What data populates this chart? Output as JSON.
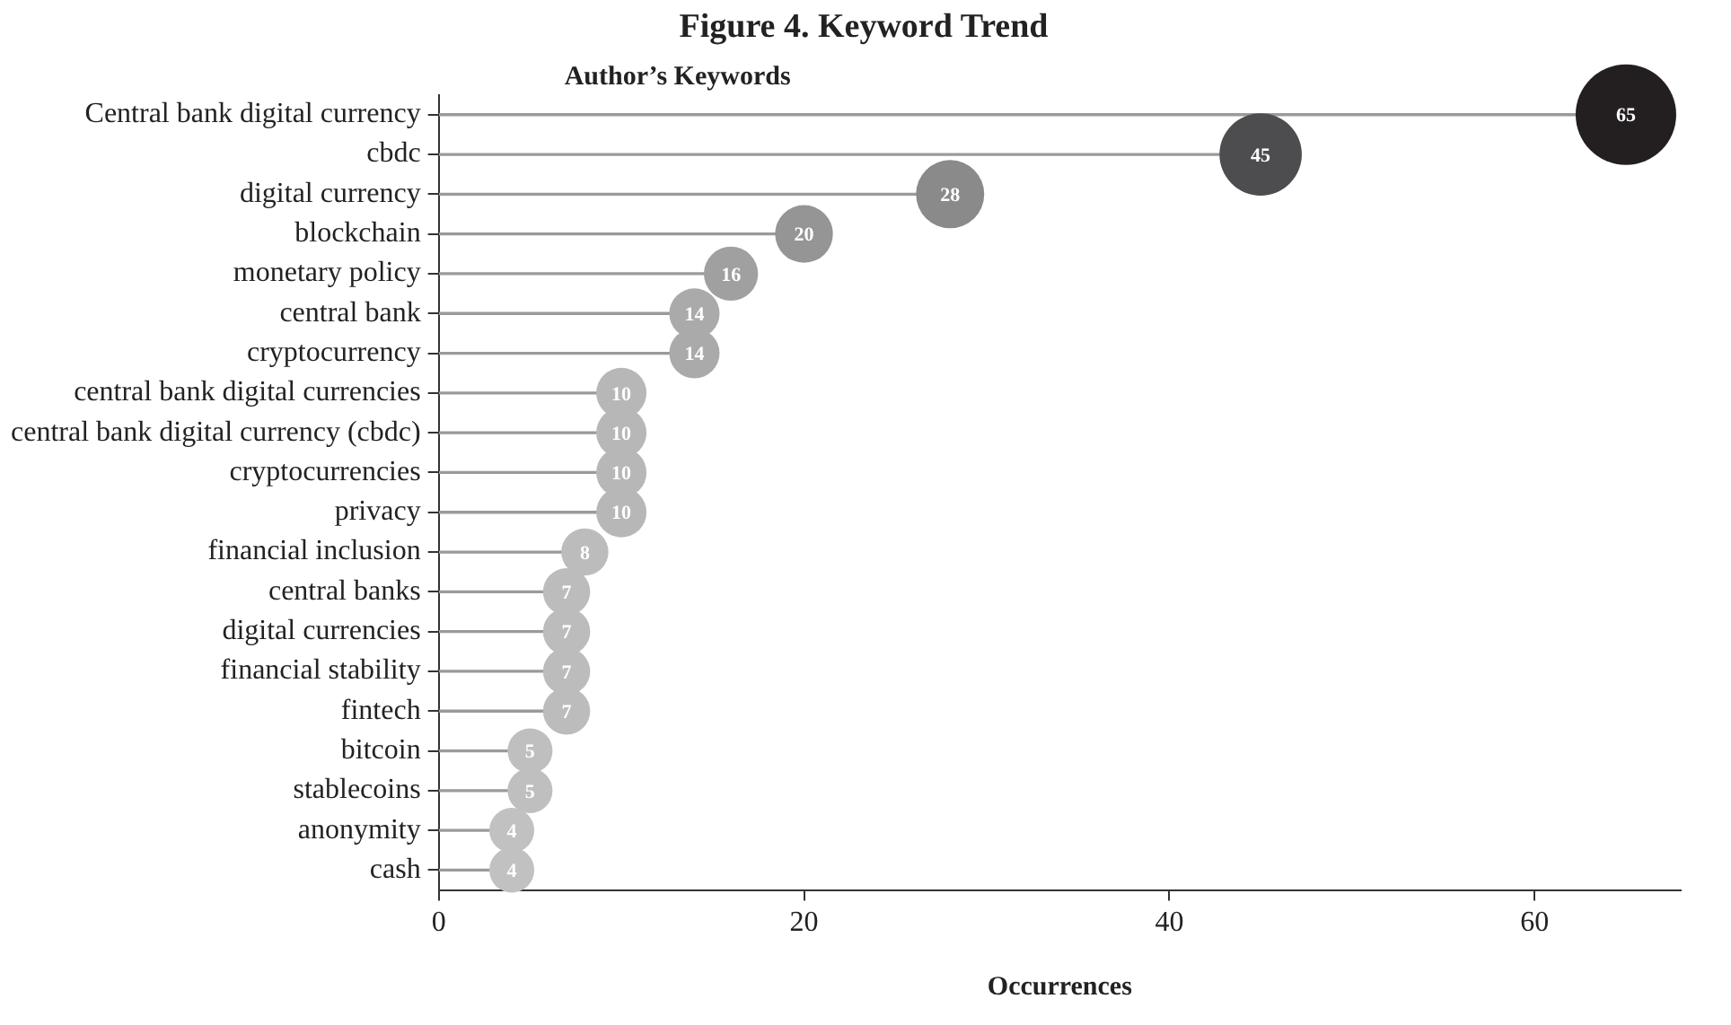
{
  "chart_data": {
    "type": "lollipop",
    "orientation": "horizontal",
    "title": "Figure 4. Keyword Trend",
    "ylabel": "Author’s Keywords",
    "xlabel": "Occurrences",
    "categories": [
      "Central bank digital currency",
      "cbdc",
      "digital currency",
      "blockchain",
      "monetary policy",
      "central bank",
      "cryptocurrency",
      "central bank digital currencies",
      "central bank digital currency (cbdc)",
      "cryptocurrencies",
      "privacy",
      "financial inclusion",
      "central banks",
      "digital currencies",
      "financial stability",
      "fintech",
      "bitcoin",
      "stablecoins",
      "anonymity",
      "cash"
    ],
    "values": [
      65,
      45,
      28,
      20,
      16,
      14,
      14,
      10,
      10,
      10,
      10,
      8,
      7,
      7,
      7,
      7,
      5,
      5,
      4,
      4
    ],
    "colors": [
      "#231f20",
      "#4d4d4f",
      "#8a8a8a",
      "#959595",
      "#a0a0a0",
      "#aaaaaa",
      "#aaaaaa",
      "#b7b7b7",
      "#b7b7b7",
      "#b7b7b7",
      "#b7b7b7",
      "#bcbcbc",
      "#bcbcbc",
      "#bcbcbc",
      "#bcbcbc",
      "#bcbcbc",
      "#bfbfbf",
      "#bfbfbf",
      "#c1c1c1",
      "#c1c1c1"
    ],
    "sizes": [
      1,
      0.67,
      0.46,
      0.33,
      0.29,
      0.25,
      0.25,
      0.25,
      0.25,
      0.25,
      0.25,
      0.22,
      0.22,
      0.22,
      0.22,
      0.22,
      0.2,
      0.2,
      0.2,
      0.2
    ],
    "xlim": [
      0,
      68
    ],
    "xticks": [
      0,
      20,
      40,
      60
    ],
    "grid": false,
    "legend": false,
    "data_labels": true,
    "marker": "circle"
  }
}
